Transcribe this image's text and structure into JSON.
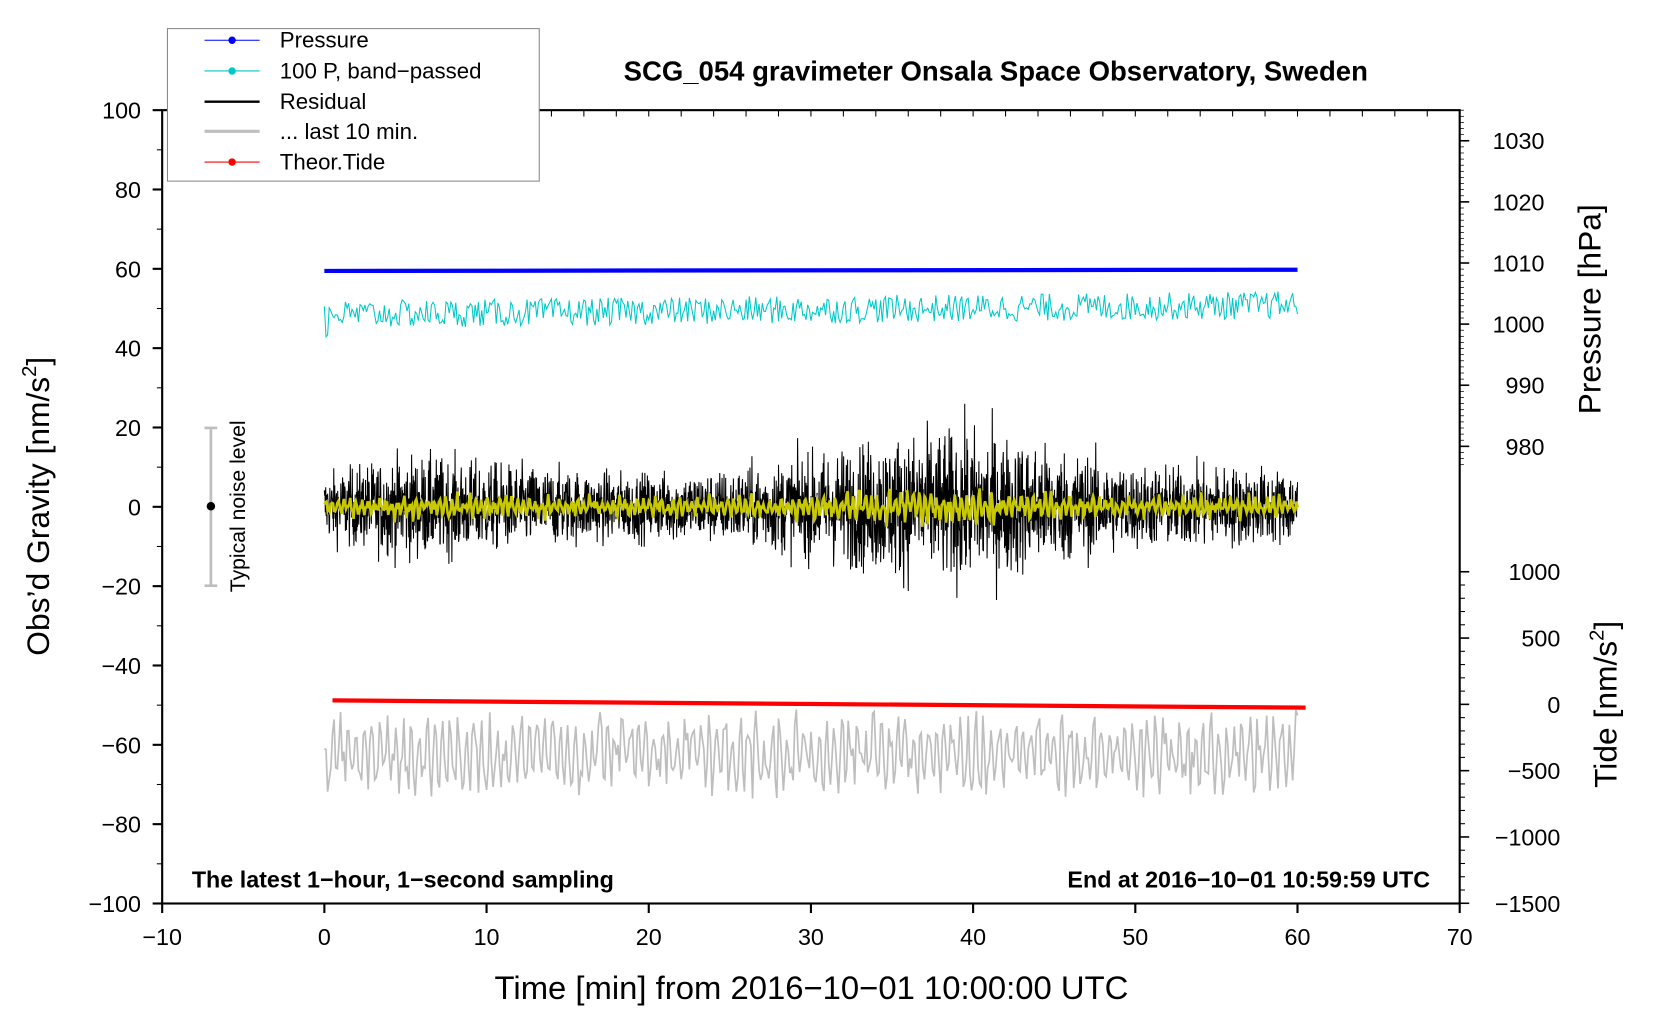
{
  "chart_data": {
    "type": "line",
    "title": "SCG_054 gravimeter Onsala Space Observatory, Sweden",
    "xlabel": "Time [min] from 2016−10−01 10:00:00 UTC",
    "ylabel": "Obs’d Gravity [nm/s",
    "ylabel_sup": "2",
    "ylabel_end": "]",
    "y2label": "Pressure [hPa]",
    "y3label": "Tide [nm/s",
    "y3label_sup": "2",
    "y3label_end": "]",
    "xlim": [
      -10,
      70
    ],
    "ylim": [
      -100,
      100
    ],
    "pressure_axis_range": [
      975,
      1035
    ],
    "tide_axis_range": [
      -1500,
      1000
    ],
    "xticks": [
      "−10",
      "0",
      "10",
      "20",
      "30",
      "40",
      "50",
      "60",
      "70"
    ],
    "xtick_values": [
      -10,
      0,
      10,
      20,
      30,
      40,
      50,
      60,
      70
    ],
    "yticks": [
      "100",
      "80",
      "60",
      "40",
      "20",
      "0",
      "−20",
      "−40",
      "−60",
      "−80",
      "−100"
    ],
    "ytick_values": [
      100,
      80,
      60,
      40,
      20,
      0,
      -20,
      -40,
      -60,
      -80,
      -100
    ],
    "pressure_ticks": [
      "1030",
      "1020",
      "1010",
      "1000",
      "990",
      "980"
    ],
    "pressure_tick_values": [
      1030,
      1020,
      1010,
      1000,
      990,
      980
    ],
    "tide_ticks": [
      "1000",
      "500",
      "0",
      "−500",
      "−1000",
      "−1500"
    ],
    "tide_tick_values": [
      1000,
      500,
      0,
      -500,
      -1000,
      -1500
    ],
    "legend": {
      "placement": "top-left",
      "entries": [
        {
          "label": "Pressure",
          "color": "#0000ff",
          "marker": true
        },
        {
          "label": "100 P, band−passed",
          "color": "#00c8c8",
          "marker": true
        },
        {
          "label": "Residual",
          "color": "#000000",
          "marker": false
        },
        {
          "label": "... last 10 min.",
          "color": "#bebebe",
          "marker": false
        },
        {
          "label": "Theor.Tide",
          "color": "#ff0000",
          "marker": true
        }
      ]
    },
    "annotations": {
      "bottom_left": "The latest 1−hour, 1−second sampling",
      "bottom_right": "End at 2016−10−01 10:59:59 UTC",
      "noise_label": "Typical noise level",
      "noise_bar": {
        "x": -7,
        "center": 0,
        "low": -20,
        "high": 20
      }
    },
    "series": [
      {
        "name": "Pressure",
        "axis": "pressure",
        "color": "#0000ff",
        "x_range": [
          0,
          60
        ],
        "start": 1008.7,
        "end": 1008.9
      },
      {
        "name": "100 P, band-passed",
        "axis": "left",
        "color": "#00c8c8",
        "x_range": [
          0,
          60
        ],
        "mean": 49.5,
        "amplitude": 3.5
      },
      {
        "name": "Residual",
        "axis": "left",
        "color": "#000000",
        "x_range": [
          0,
          60
        ],
        "mean": 0,
        "envelope_every_5min": [
          9,
          14,
          12,
          10,
          9,
          10,
          14,
          19,
          21,
          16,
          11,
          11,
          10
        ]
      },
      {
        "name": "Residual smoothed",
        "axis": "left",
        "color": "#c8c800",
        "x_range": [
          0,
          60
        ],
        "mean": 0,
        "amplitude": 2.5
      },
      {
        "name": "... last 10 min.",
        "axis": "left",
        "color": "#bebebe",
        "x_range": [
          0,
          60
        ],
        "mean": -62,
        "amplitude": 9
      },
      {
        "name": "Theor.Tide",
        "axis": "tide",
        "color": "#ff0000",
        "x_range": [
          0.5,
          60.5
        ],
        "start": 30,
        "end": -25
      }
    ]
  }
}
